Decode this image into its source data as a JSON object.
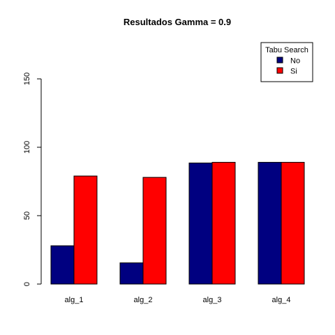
{
  "chart_data": {
    "type": "bar",
    "title": "Resultados Gamma = 0.9",
    "xlabel": "",
    "ylabel": "",
    "categories": [
      "alg_1",
      "alg_2",
      "alg_3",
      "alg_4"
    ],
    "series": [
      {
        "name": "No",
        "color": "#000080",
        "values": [
          28,
          15.5,
          88.5,
          89
        ]
      },
      {
        "name": "Si",
        "color": "#FF0000",
        "values": [
          79,
          78,
          89,
          89
        ]
      }
    ],
    "ylim": [
      0,
      150
    ],
    "yticks": [
      0,
      50,
      100,
      150
    ],
    "grid": false,
    "legend": {
      "title": "Tabu Search",
      "position": "top-right"
    }
  }
}
